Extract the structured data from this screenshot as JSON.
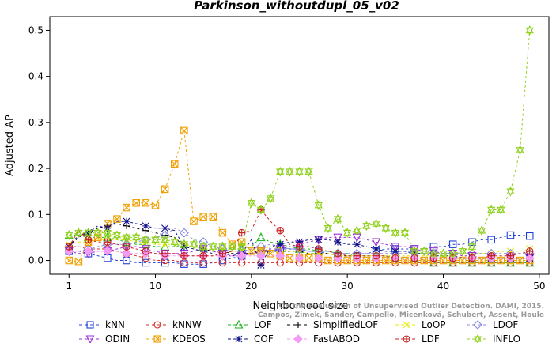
{
  "chart_data": {
    "type": "line",
    "title": "Parkinson_withoutdupl_05_v02",
    "xlabel": "Neighborhood size",
    "ylabel": "Adjusted AP",
    "xlim": [
      -1,
      51
    ],
    "ylim": [
      -0.03,
      0.53
    ],
    "xticks": [
      1,
      10,
      20,
      30,
      40,
      50
    ],
    "yticks": [
      0.0,
      0.1,
      0.2,
      0.3,
      0.4,
      0.5
    ],
    "ytick_labels": [
      "0.0",
      "0.1",
      "0.2",
      "0.3",
      "0.4",
      "0.5"
    ],
    "legend_placement": "bottom",
    "credit": "Campos, Zimek, Sander, Campello, Micenková, Schubert, Assent, Houle",
    "credit_top": "On the Evaluation of Unsupervised Outlier Detection. DAMI, 2015.",
    "x": [
      1,
      2,
      3,
      4,
      5,
      6,
      7,
      8,
      9,
      10,
      11,
      12,
      13,
      14,
      15,
      16,
      17,
      18,
      19,
      20,
      21,
      22,
      23,
      24,
      25,
      26,
      27,
      28,
      29,
      30,
      31,
      32,
      33,
      34,
      35,
      36,
      37,
      38,
      39,
      40,
      41,
      42,
      43,
      44,
      45,
      46,
      47,
      48,
      49
    ],
    "series": [
      {
        "name": "kNN",
        "color": "#1f3fd4",
        "marker": "square",
        "values": [
          0.02,
          0.02,
          0.015,
          0.01,
          0.005,
          0.0,
          0.0,
          -0.005,
          -0.005,
          -0.005,
          -0.005,
          -0.005,
          -0.008,
          -0.008,
          -0.008,
          -0.005,
          0.0,
          0.005,
          0.01,
          0.015,
          0.02,
          0.02,
          0.025,
          0.025,
          0.025,
          0.02,
          0.02,
          0.015,
          0.01,
          0.01,
          0.01,
          0.015,
          0.02,
          0.025,
          0.025,
          0.025,
          0.025,
          0.025,
          0.03,
          0.03,
          0.035,
          0.035,
          0.04,
          0.045,
          0.045,
          0.05,
          0.055,
          0.055,
          0.053
        ]
      },
      {
        "name": "kNNW",
        "color": "#d42a2a",
        "marker": "circle",
        "values": [
          0.03,
          0.03,
          0.025,
          0.025,
          0.025,
          0.02,
          0.015,
          0.01,
          0.005,
          0.0,
          0.0,
          0.0,
          -0.005,
          -0.005,
          -0.005,
          -0.005,
          -0.005,
          -0.005,
          -0.005,
          -0.005,
          -0.005,
          -0.005,
          -0.005,
          -0.005,
          -0.005,
          -0.005,
          -0.005,
          -0.005,
          -0.005,
          -0.005,
          -0.005,
          -0.005,
          -0.005,
          -0.005,
          -0.005,
          -0.005,
          -0.005,
          -0.005,
          -0.005,
          -0.005,
          -0.005,
          -0.005,
          -0.005,
          -0.005,
          -0.005,
          -0.005,
          -0.005,
          -0.005,
          -0.005
        ]
      },
      {
        "name": "LOF",
        "color": "#19b019",
        "marker": "triangle",
        "values": [
          0.055,
          0.055,
          0.05,
          0.05,
          0.05,
          0.045,
          0.04,
          0.035,
          0.035,
          0.03,
          0.03,
          0.03,
          0.035,
          0.03,
          0.03,
          0.03,
          0.03,
          0.025,
          0.025,
          0.03,
          0.05,
          0.04,
          0.035,
          0.03,
          0.025,
          0.025,
          0.02,
          0.02,
          0.015,
          0.015,
          0.01,
          0.01,
          0.01,
          0.01,
          0.005,
          0.005,
          0.005,
          0.0,
          -0.005,
          -0.005,
          -0.005,
          -0.005,
          -0.005,
          -0.005,
          -0.005,
          -0.005,
          -0.005,
          -0.005,
          -0.005
        ]
      },
      {
        "name": "SimplifiedLOF",
        "color": "#000000",
        "marker": "plus",
        "values": [
          0.03,
          0.055,
          0.06,
          0.07,
          0.075,
          0.08,
          0.075,
          0.07,
          0.065,
          0.06,
          0.055,
          0.05,
          0.03,
          0.03,
          0.025,
          0.02,
          0.02,
          0.015,
          0.015,
          0.015,
          0.02,
          0.02,
          0.02,
          0.02,
          0.02,
          0.015,
          0.015,
          0.015,
          0.01,
          0.01,
          0.01,
          0.005,
          0.005,
          0.005,
          0.005,
          0.005,
          0.005,
          0.005,
          0.005,
          0.005,
          0.005,
          0.005,
          0.005,
          0.005,
          0.005,
          0.005,
          0.005,
          0.005,
          0.005
        ]
      },
      {
        "name": "LoOP",
        "color": "#e8e800",
        "marker": "x",
        "values": [
          0.035,
          0.04,
          0.04,
          0.045,
          0.045,
          0.045,
          0.045,
          0.04,
          0.04,
          0.035,
          0.035,
          0.035,
          0.035,
          0.03,
          0.025,
          0.025,
          0.025,
          0.02,
          0.02,
          0.02,
          0.025,
          0.03,
          0.025,
          0.02,
          0.02,
          0.015,
          0.015,
          0.015,
          0.01,
          0.01,
          0.01,
          0.01,
          0.01,
          0.01,
          0.01,
          0.01,
          0.01,
          0.01,
          0.01,
          0.01,
          0.01,
          0.015,
          0.015,
          0.015,
          0.015,
          0.02,
          0.02,
          0.02,
          0.025
        ]
      },
      {
        "name": "LDOF",
        "color": "#8a8ae0",
        "marker": "diamond",
        "values": [
          0.02,
          0.02,
          0.025,
          0.03,
          0.035,
          0.035,
          0.035,
          0.04,
          0.045,
          0.05,
          0.055,
          0.07,
          0.06,
          0.045,
          0.04,
          0.03,
          0.025,
          0.02,
          0.02,
          0.025,
          0.03,
          0.035,
          0.03,
          0.025,
          0.025,
          0.02,
          0.02,
          0.02,
          0.015,
          0.015,
          0.015,
          0.015,
          0.015,
          0.015,
          0.015,
          0.015,
          0.015,
          0.015,
          0.015,
          0.015,
          0.015,
          0.015,
          0.015,
          0.015,
          0.015,
          0.015,
          0.015,
          0.015,
          0.015
        ]
      },
      {
        "name": "ODIN",
        "color": "#9b30d6",
        "marker": "triangle-down",
        "values": [
          0.02,
          0.015,
          0.015,
          0.02,
          0.02,
          0.025,
          0.03,
          0.03,
          0.025,
          0.02,
          0.015,
          0.015,
          0.015,
          0.02,
          0.025,
          0.02,
          0.015,
          0.01,
          0.01,
          0.015,
          0.02,
          0.025,
          0.025,
          0.03,
          0.035,
          0.04,
          0.045,
          0.05,
          0.05,
          0.05,
          0.05,
          0.045,
          0.04,
          0.035,
          0.03,
          0.03,
          0.025,
          0.02,
          0.02,
          0.015,
          0.015,
          0.01,
          0.01,
          0.005,
          0.005,
          0.005,
          0.005,
          0.005,
          0.005
        ]
      },
      {
        "name": "KDEOS",
        "color": "#f0a000",
        "marker": "square-x",
        "values": [
          0.0,
          -0.002,
          0.04,
          0.05,
          0.08,
          0.09,
          0.115,
          0.125,
          0.125,
          0.12,
          0.155,
          0.21,
          0.282,
          0.085,
          0.095,
          0.095,
          0.06,
          0.035,
          0.04,
          0.02,
          0.02,
          0.015,
          0.01,
          0.005,
          0.005,
          0.005,
          0.005,
          0.0,
          0.0,
          0.0,
          0.0,
          0.0,
          0.0,
          0.0,
          0.0,
          0.0,
          0.0,
          0.0,
          0.0,
          0.0,
          0.0,
          0.0,
          0.0,
          0.0,
          0.0,
          0.0,
          0.0,
          0.0,
          0.0
        ]
      },
      {
        "name": "COF",
        "color": "#10108a",
        "marker": "star",
        "values": [
          0.03,
          0.05,
          0.06,
          0.075,
          0.07,
          0.085,
          0.085,
          0.08,
          0.075,
          0.07,
          0.07,
          0.065,
          0.03,
          0.025,
          0.02,
          0.015,
          0.01,
          0.01,
          0.015,
          0.045,
          -0.01,
          0.03,
          0.035,
          0.04,
          0.04,
          0.045,
          0.045,
          0.045,
          0.04,
          0.035,
          0.035,
          0.03,
          0.025,
          0.02,
          0.02,
          0.02,
          0.015,
          0.015,
          0.01,
          0.01,
          0.01,
          0.005,
          0.005,
          0.005,
          0.005,
          0.005,
          0.005,
          0.005,
          0.005
        ]
      },
      {
        "name": "FastABOD",
        "color": "#f29bf2",
        "marker": "diamond-filled",
        "values": [
          0.02,
          0.02,
          0.02,
          0.02,
          0.02,
          0.02,
          0.015,
          0.015,
          0.015,
          0.015,
          0.01,
          0.01,
          0.01,
          0.01,
          0.01,
          0.01,
          0.01,
          0.01,
          0.01,
          0.01,
          0.01,
          0.01,
          0.01,
          0.01,
          0.005,
          0.005,
          0.005,
          0.005,
          0.005,
          0.005,
          0.005,
          0.005,
          0.005,
          0.005,
          0.005,
          0.005,
          0.005,
          0.005,
          0.005,
          0.005,
          0.005,
          0.005,
          0.005,
          0.005,
          0.005,
          0.005,
          0.005,
          0.005,
          0.005
        ]
      },
      {
        "name": "LDF",
        "color": "#c82020",
        "marker": "circle-plus",
        "values": [
          0.03,
          0.065,
          0.045,
          0.04,
          0.04,
          0.035,
          0.03,
          0.025,
          0.02,
          0.015,
          0.015,
          0.015,
          0.01,
          0.01,
          0.01,
          0.01,
          0.015,
          0.02,
          0.06,
          0.065,
          0.11,
          0.085,
          0.065,
          0.035,
          0.03,
          0.03,
          0.025,
          0.02,
          0.015,
          0.01,
          0.01,
          0.01,
          0.01,
          0.01,
          0.005,
          0.005,
          0.005,
          0.005,
          0.005,
          0.005,
          0.005,
          0.005,
          0.005,
          0.005,
          0.01,
          0.01,
          0.01,
          0.015,
          0.02
        ]
      },
      {
        "name": "INFLO",
        "color": "#8fd11c",
        "marker": "star-box",
        "values": [
          0.055,
          0.06,
          0.06,
          0.06,
          0.06,
          0.055,
          0.05,
          0.05,
          0.045,
          0.045,
          0.045,
          0.04,
          0.035,
          0.035,
          0.03,
          0.03,
          0.03,
          0.03,
          0.03,
          0.125,
          0.11,
          0.135,
          0.193,
          0.193,
          0.193,
          0.193,
          0.12,
          0.07,
          0.09,
          0.06,
          0.065,
          0.075,
          0.08,
          0.07,
          0.06,
          0.06,
          0.02,
          0.02,
          0.015,
          0.015,
          0.015,
          0.02,
          0.03,
          0.065,
          0.11,
          0.11,
          0.15,
          0.24,
          0.5
        ]
      }
    ]
  }
}
